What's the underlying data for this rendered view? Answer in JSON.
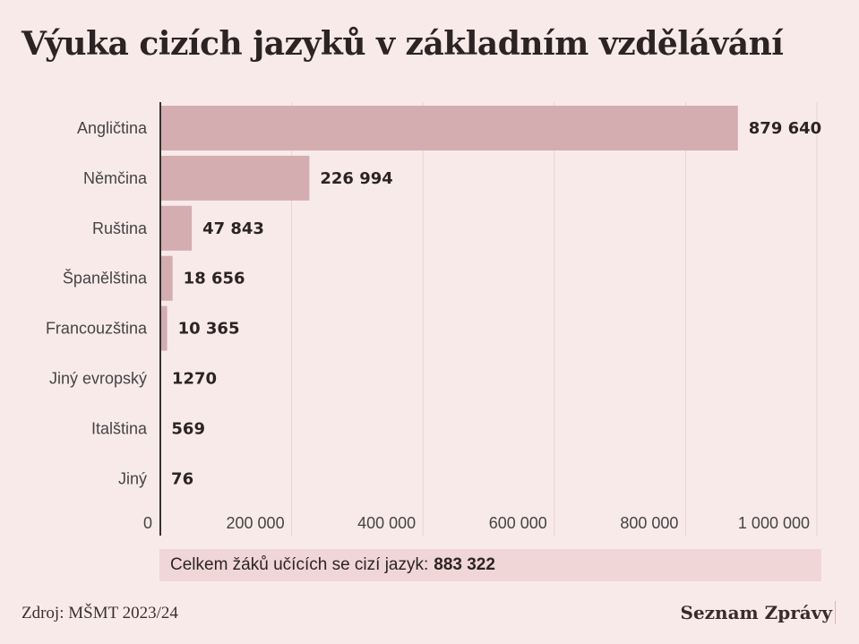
{
  "title": "Výuka cizích jazyků v základním vzdělávání",
  "total": {
    "label": "Celkem žáků učících se cizí jazyk:",
    "value": "883 322"
  },
  "source": "Zdroj: MŠMT 2023/24",
  "brand": "Seznam Zprávy",
  "colors": {
    "background": "#f9eaea",
    "bar": "#d4adb0",
    "grid": "#e8d2d2",
    "axis": "#333333"
  },
  "chart_data": {
    "type": "bar",
    "orientation": "horizontal",
    "categories": [
      "Angličtina",
      "Němčina",
      "Ruština",
      "Španělština",
      "Francouzština",
      "Jiný evropský",
      "Italština",
      "Jiný"
    ],
    "values": [
      879640,
      226994,
      47843,
      18656,
      10365,
      1270,
      569,
      76
    ],
    "value_labels": [
      "879 640",
      "226 994",
      "47 843",
      "18 656",
      "10 365",
      "1270",
      "569",
      "76"
    ],
    "xlim": [
      0,
      1000000
    ],
    "ticks": [
      0,
      200000,
      400000,
      600000,
      800000,
      1000000
    ],
    "tick_labels": [
      "0",
      "200 000",
      "400 000",
      "600 000",
      "800 000",
      "1 000 000"
    ],
    "grid": true
  }
}
